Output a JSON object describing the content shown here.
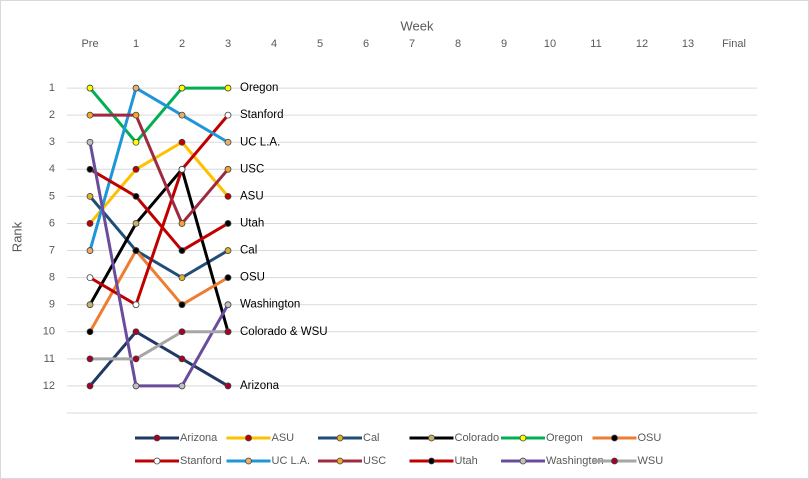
{
  "chart_data": {
    "type": "line",
    "x_axis_title": "Week",
    "y_axis_title": "Rank",
    "categories": [
      "Pre",
      "1",
      "2",
      "3",
      "4",
      "5",
      "6",
      "7",
      "8",
      "9",
      "10",
      "11",
      "12",
      "13",
      "Final"
    ],
    "ylim": [
      0,
      13
    ],
    "y_inverted": true,
    "yticks": [
      1,
      2,
      3,
      4,
      5,
      6,
      7,
      8,
      9,
      10,
      11,
      12
    ],
    "grid": true,
    "legend": "bottom",
    "series": [
      {
        "name": "Arizona",
        "color": "#203864",
        "marker_color": "#a5002a",
        "values": [
          12,
          10,
          11,
          12,
          null,
          null,
          null,
          null,
          null,
          null,
          null,
          null,
          null,
          null,
          null
        ]
      },
      {
        "name": "ASU",
        "color": "#ffc000",
        "marker_color": "#c00000",
        "values": [
          6,
          4,
          3,
          5,
          null,
          null,
          null,
          null,
          null,
          null,
          null,
          null,
          null,
          null,
          null
        ]
      },
      {
        "name": "Cal",
        "color": "#1f4e79",
        "marker_color": "#e0b030",
        "values": [
          5,
          7,
          8,
          7,
          null,
          null,
          null,
          null,
          null,
          null,
          null,
          null,
          null,
          null,
          null
        ]
      },
      {
        "name": "Colorado",
        "color": "#000000",
        "marker_color": "#c9b16b",
        "values": [
          9,
          6,
          4,
          10,
          null,
          null,
          null,
          null,
          null,
          null,
          null,
          null,
          null,
          null,
          null
        ]
      },
      {
        "name": "Oregon",
        "color": "#00b050",
        "marker_color": "#ffff00",
        "values": [
          1,
          3,
          1,
          1,
          null,
          null,
          null,
          null,
          null,
          null,
          null,
          null,
          null,
          null,
          null
        ]
      },
      {
        "name": "OSU",
        "color": "#ed7d31",
        "marker_color": "#000000",
        "values": [
          10,
          7,
          9,
          8,
          null,
          null,
          null,
          null,
          null,
          null,
          null,
          null,
          null,
          null,
          null
        ]
      },
      {
        "name": "Stanford",
        "color": "#c00000",
        "marker_color": "#ffffff",
        "values": [
          8,
          9,
          4,
          2,
          null,
          null,
          null,
          null,
          null,
          null,
          null,
          null,
          null,
          null,
          null
        ]
      },
      {
        "name": "UC L.A.",
        "color": "#1e96d8",
        "marker_color": "#e8b070",
        "values": [
          7,
          1,
          2,
          3,
          null,
          null,
          null,
          null,
          null,
          null,
          null,
          null,
          null,
          null,
          null
        ]
      },
      {
        "name": "USC",
        "color": "#9e2a40",
        "marker_color": "#f4a52a",
        "values": [
          2,
          2,
          6,
          4,
          null,
          null,
          null,
          null,
          null,
          null,
          null,
          null,
          null,
          null,
          null
        ]
      },
      {
        "name": "Utah",
        "color": "#c00000",
        "marker_color": "#000000",
        "values": [
          4,
          5,
          7,
          6,
          null,
          null,
          null,
          null,
          null,
          null,
          null,
          null,
          null,
          null,
          null
        ]
      },
      {
        "name": "Washington",
        "color": "#6a4c9c",
        "marker_color": "#c0c0c0",
        "values": [
          3,
          12,
          12,
          9,
          null,
          null,
          null,
          null,
          null,
          null,
          null,
          null,
          null,
          null,
          null
        ]
      },
      {
        "name": "WSU",
        "color": "#a6a6a6",
        "marker_color": "#a5002a",
        "values": [
          11,
          11,
          10,
          10,
          null,
          null,
          null,
          null,
          null,
          null,
          null,
          null,
          null,
          null,
          null
        ]
      }
    ],
    "annotations": [
      {
        "text": "Oregon",
        "x": "3",
        "y": 1
      },
      {
        "text": "Stanford",
        "x": "3",
        "y": 2
      },
      {
        "text": "UC L.A.",
        "x": "3",
        "y": 3
      },
      {
        "text": "USC",
        "x": "3",
        "y": 4
      },
      {
        "text": "ASU",
        "x": "3",
        "y": 5
      },
      {
        "text": "Utah",
        "x": "3",
        "y": 6
      },
      {
        "text": "Cal",
        "x": "3",
        "y": 7
      },
      {
        "text": "OSU",
        "x": "3",
        "y": 8
      },
      {
        "text": "Washington",
        "x": "3",
        "y": 9
      },
      {
        "text": "Colorado & WSU",
        "x": "3",
        "y": 10
      },
      {
        "text": "Arizona",
        "x": "3",
        "y": 12
      }
    ]
  }
}
